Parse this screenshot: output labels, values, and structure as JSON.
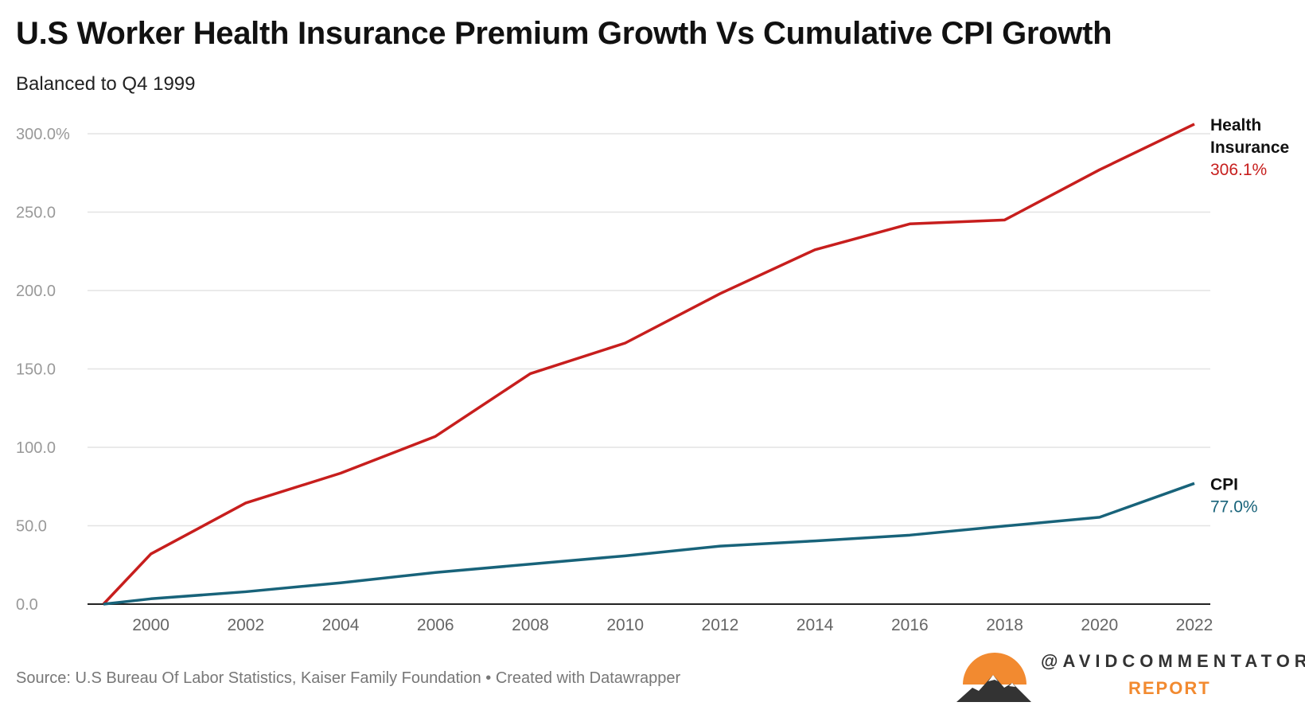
{
  "title": "U.S Worker Health Insurance Premium Growth Vs Cumulative CPI Growth",
  "subtitle": "Balanced to Q4 1999",
  "source": "Source: U.S Bureau Of Labor Statistics, Kaiser Family Foundation • Created with Datawrapper",
  "logo": {
    "handle": "@AVIDCOMMENTATOR",
    "report": "REPORT",
    "sun_color": "#f28a30"
  },
  "chart_data": {
    "type": "line",
    "title": "U.S Worker Health Insurance Premium Growth Vs Cumulative CPI Growth",
    "xlabel": "",
    "ylabel": "",
    "x": [
      1999,
      2000,
      2002,
      2004,
      2006,
      2008,
      2010,
      2012,
      2014,
      2016,
      2018,
      2020,
      2022
    ],
    "xlim": [
      1999,
      2022
    ],
    "ylim": [
      0,
      300
    ],
    "yticks": [
      0,
      50,
      100,
      150,
      200,
      250,
      300
    ],
    "ytick_labels": [
      "0.0",
      "50.0",
      "100.0",
      "150.0",
      "200.0",
      "250.0",
      "300.0%"
    ],
    "xticks": [
      2000,
      2002,
      2004,
      2006,
      2008,
      2010,
      2012,
      2014,
      2016,
      2018,
      2020,
      2022
    ],
    "xtick_labels": [
      "2000",
      "2002",
      "2004",
      "2006",
      "2008",
      "2010",
      "2012",
      "2014",
      "2016",
      "2018",
      "2020",
      "2022"
    ],
    "grid": true,
    "series": [
      {
        "name": "Health Insurance",
        "label_lines": [
          "Health",
          "Insurance"
        ],
        "end_label": "306.1%",
        "color": "#c71e1d",
        "values": [
          0,
          32,
          64.5,
          83.5,
          107,
          147,
          166.5,
          198,
          226,
          242.5,
          245,
          277,
          306.1
        ]
      },
      {
        "name": "CPI",
        "label_lines": [
          "CPI"
        ],
        "end_label": "77.0%",
        "color": "#18637a",
        "values": [
          0,
          3.4,
          7.9,
          13.6,
          20.2,
          25.5,
          30.8,
          37.0,
          40.3,
          44.0,
          49.8,
          55.4,
          77.0
        ]
      }
    ]
  }
}
